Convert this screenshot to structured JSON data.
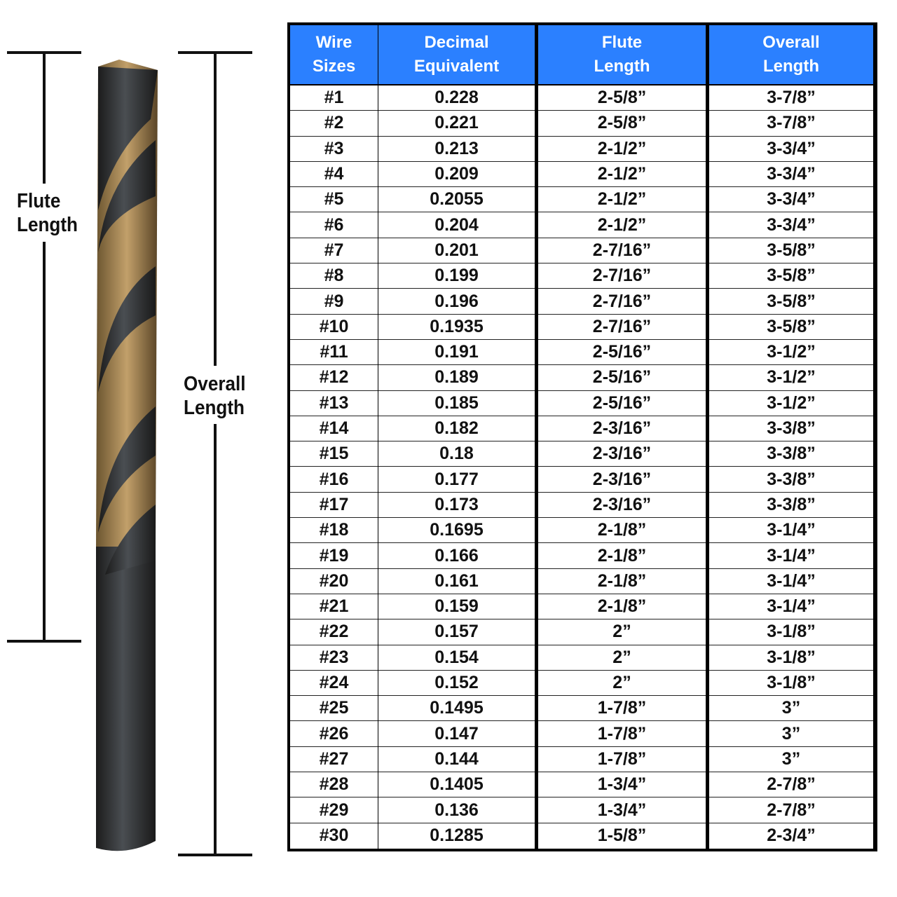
{
  "labels": {
    "flute_length": [
      "Flute",
      "Length"
    ],
    "overall_length": [
      "Overall",
      "Length"
    ]
  },
  "colors": {
    "header": "#2b80ff",
    "border": "#000000"
  },
  "table": {
    "headers": [
      [
        "Wire",
        "Sizes"
      ],
      [
        "Decimal",
        "Equivalent"
      ],
      [
        "Flute",
        "Length"
      ],
      [
        "Overall",
        "Length"
      ]
    ],
    "rows": [
      [
        "#1",
        "0.228",
        "2-5/8”",
        "3-7/8”"
      ],
      [
        "#2",
        "0.221",
        "2-5/8”",
        "3-7/8”"
      ],
      [
        "#3",
        "0.213",
        "2-1/2”",
        "3-3/4”"
      ],
      [
        "#4",
        "0.209",
        "2-1/2”",
        "3-3/4”"
      ],
      [
        "#5",
        "0.2055",
        "2-1/2”",
        "3-3/4”"
      ],
      [
        "#6",
        "0.204",
        "2-1/2”",
        "3-3/4”"
      ],
      [
        "#7",
        "0.201",
        "2-7/16”",
        "3-5/8”"
      ],
      [
        "#8",
        "0.199",
        "2-7/16”",
        "3-5/8”"
      ],
      [
        "#9",
        "0.196",
        "2-7/16”",
        "3-5/8”"
      ],
      [
        "#10",
        "0.1935",
        "2-7/16”",
        "3-5/8”"
      ],
      [
        "#11",
        "0.191",
        "2-5/16”",
        "3-1/2”"
      ],
      [
        "#12",
        "0.189",
        "2-5/16”",
        "3-1/2”"
      ],
      [
        "#13",
        "0.185",
        "2-5/16”",
        "3-1/2”"
      ],
      [
        "#14",
        "0.182",
        "2-3/16”",
        "3-3/8”"
      ],
      [
        "#15",
        "0.18",
        "2-3/16”",
        "3-3/8”"
      ],
      [
        "#16",
        "0.177",
        "2-3/16”",
        "3-3/8”"
      ],
      [
        "#17",
        "0.173",
        "2-3/16”",
        "3-3/8”"
      ],
      [
        "#18",
        "0.1695",
        "2-1/8”",
        "3-1/4”"
      ],
      [
        "#19",
        "0.166",
        "2-1/8”",
        "3-1/4”"
      ],
      [
        "#20",
        "0.161",
        "2-1/8”",
        "3-1/4”"
      ],
      [
        "#21",
        "0.159",
        "2-1/8”",
        "3-1/4”"
      ],
      [
        "#22",
        "0.157",
        "2”",
        "3-1/8”"
      ],
      [
        "#23",
        "0.154",
        "2”",
        "3-1/8”"
      ],
      [
        "#24",
        "0.152",
        "2”",
        "3-1/8”"
      ],
      [
        "#25",
        "0.1495",
        "1-7/8”",
        "3”"
      ],
      [
        "#26",
        "0.147",
        "1-7/8”",
        "3”"
      ],
      [
        "#27",
        "0.144",
        "1-7/8”",
        "3”"
      ],
      [
        "#28",
        "0.1405",
        "1-3/4”",
        "2-7/8”"
      ],
      [
        "#29",
        "0.136",
        "1-3/4”",
        "2-7/8”"
      ],
      [
        "#30",
        "0.1285",
        "1-5/8”",
        "2-3/4”"
      ]
    ]
  }
}
